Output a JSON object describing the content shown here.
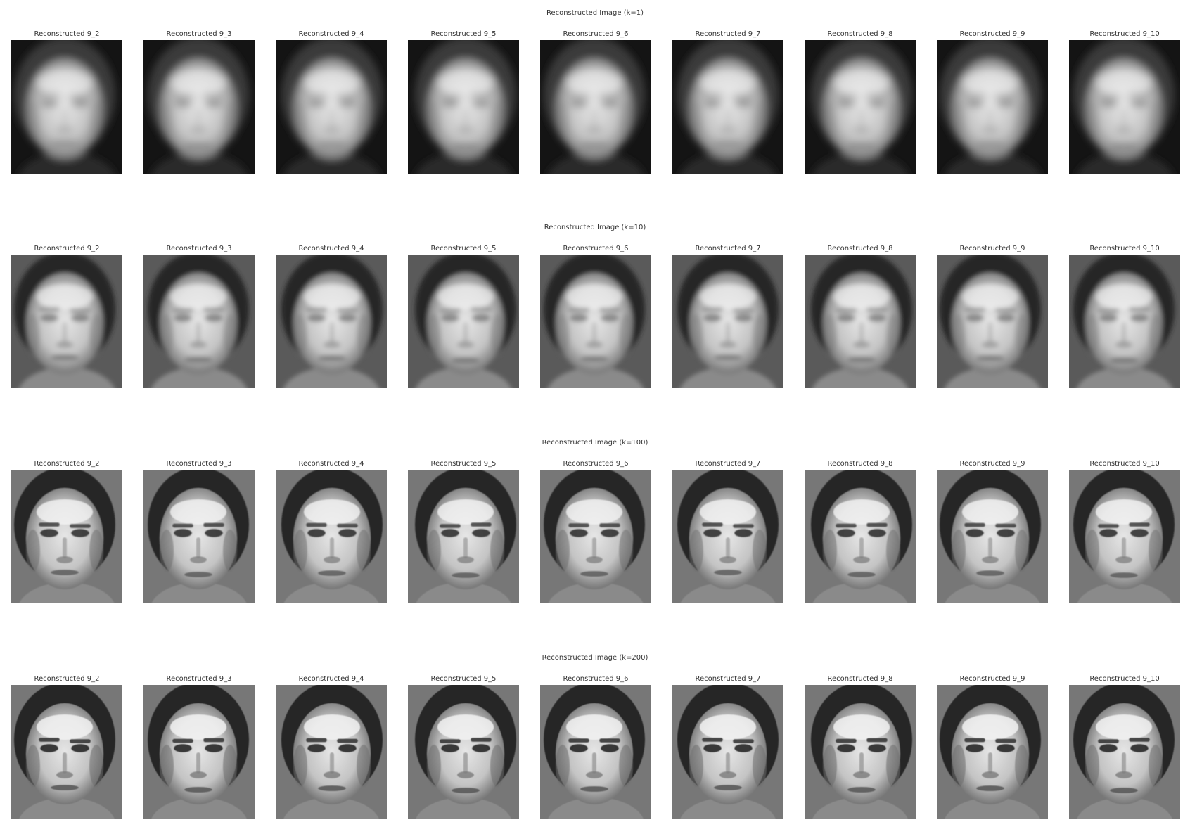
{
  "figure": {
    "rows": [
      {
        "title": "Reconstructed Image (k=1)",
        "k": 1,
        "panels": [
          {
            "title": "Reconstructed 9_2",
            "index": 2
          },
          {
            "title": "Reconstructed 9_3",
            "index": 3
          },
          {
            "title": "Reconstructed 9_4",
            "index": 4
          },
          {
            "title": "Reconstructed 9_5",
            "index": 5
          },
          {
            "title": "Reconstructed 9_6",
            "index": 6
          },
          {
            "title": "Reconstructed 9_7",
            "index": 7
          },
          {
            "title": "Reconstructed 9_8",
            "index": 8
          },
          {
            "title": "Reconstructed 9_9",
            "index": 9
          },
          {
            "title": "Reconstructed 9_10",
            "index": 10
          }
        ]
      },
      {
        "title": "Reconstructed Image (k=10)",
        "k": 10,
        "panels": [
          {
            "title": "Reconstructed 9_2",
            "index": 2
          },
          {
            "title": "Reconstructed 9_3",
            "index": 3
          },
          {
            "title": "Reconstructed 9_4",
            "index": 4
          },
          {
            "title": "Reconstructed 9_5",
            "index": 5
          },
          {
            "title": "Reconstructed 9_6",
            "index": 6
          },
          {
            "title": "Reconstructed 9_7",
            "index": 7
          },
          {
            "title": "Reconstructed 9_8",
            "index": 8
          },
          {
            "title": "Reconstructed 9_9",
            "index": 9
          },
          {
            "title": "Reconstructed 9_10",
            "index": 10
          }
        ]
      },
      {
        "title": "Reconstructed Image (k=100)",
        "k": 100,
        "panels": [
          {
            "title": "Reconstructed 9_2",
            "index": 2
          },
          {
            "title": "Reconstructed 9_3",
            "index": 3
          },
          {
            "title": "Reconstructed 9_4",
            "index": 4
          },
          {
            "title": "Reconstructed 9_5",
            "index": 5
          },
          {
            "title": "Reconstructed 9_6",
            "index": 6
          },
          {
            "title": "Reconstructed 9_7",
            "index": 7
          },
          {
            "title": "Reconstructed 9_8",
            "index": 8
          },
          {
            "title": "Reconstructed 9_9",
            "index": 9
          },
          {
            "title": "Reconstructed 9_10",
            "index": 10
          }
        ]
      },
      {
        "title": "Reconstructed Image (k=200)",
        "k": 200,
        "panels": [
          {
            "title": "Reconstructed 9_2",
            "index": 2
          },
          {
            "title": "Reconstructed 9_3",
            "index": 3
          },
          {
            "title": "Reconstructed 9_4",
            "index": 4
          },
          {
            "title": "Reconstructed 9_5",
            "index": 5
          },
          {
            "title": "Reconstructed 9_6",
            "index": 6
          },
          {
            "title": "Reconstructed 9_7",
            "index": 7
          },
          {
            "title": "Reconstructed 9_8",
            "index": 8
          },
          {
            "title": "Reconstructed 9_9",
            "index": 9
          },
          {
            "title": "Reconstructed 9_10",
            "index": 10
          }
        ]
      }
    ]
  }
}
